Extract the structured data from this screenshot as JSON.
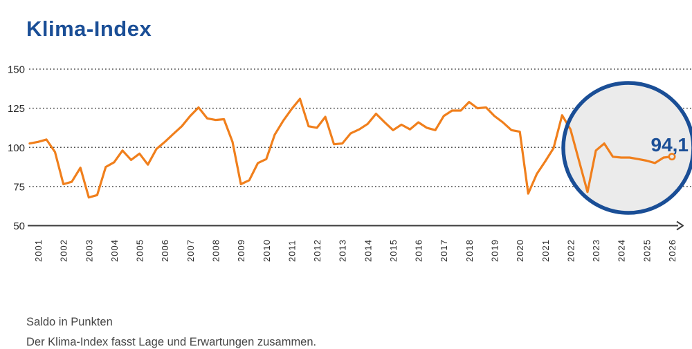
{
  "title": "Klima-Index",
  "colors": {
    "brand_blue": "#1A4E96",
    "line_orange": "#F07F1C",
    "grid_gray": "#4F4F4F",
    "axis_gray": "#3C3C3C",
    "circle_fill": "#EBEBEB",
    "text_gray": "#454545"
  },
  "footer": {
    "line1": "Saldo in Punkten",
    "line2": "Der Klima-Index fasst Lage und Erwartungen zusammen."
  },
  "chart_data": {
    "type": "line",
    "title": "Klima-Index",
    "ylabel": "Saldo in Punkten",
    "ylim": [
      50,
      150
    ],
    "yticks": [
      50,
      75,
      100,
      125,
      150
    ],
    "x_tick_years": [
      "2001",
      "2002",
      "2003",
      "2004",
      "2005",
      "2006",
      "2007",
      "2008",
      "2009",
      "2010",
      "2011",
      "2012",
      "2013",
      "2014",
      "2015",
      "2016",
      "2017",
      "2018",
      "2019",
      "2020",
      "2021",
      "2022",
      "2023",
      "2024",
      "2025",
      "2026"
    ],
    "grid": "horizontal dotted",
    "legend": "none",
    "highlight": {
      "shape": "circle-over-recent-years",
      "label": "94,1",
      "value": 94.1
    },
    "series": [
      {
        "name": "Klima-Index (Saldo in Punkten)",
        "points": [
          [
            2000.67,
            102.5
          ],
          [
            2001.0,
            103.5
          ],
          [
            2001.33,
            105
          ],
          [
            2001.67,
            97
          ],
          [
            2002.0,
            76.5
          ],
          [
            2002.33,
            78
          ],
          [
            2002.67,
            87
          ],
          [
            2003.0,
            68
          ],
          [
            2003.33,
            69.5
          ],
          [
            2003.67,
            87.5
          ],
          [
            2004.0,
            90.5
          ],
          [
            2004.33,
            98
          ],
          [
            2004.67,
            92
          ],
          [
            2005.0,
            96
          ],
          [
            2005.33,
            89
          ],
          [
            2005.67,
            99
          ],
          [
            2006.0,
            103.5
          ],
          [
            2006.33,
            108.5
          ],
          [
            2006.67,
            113.5
          ],
          [
            2007.0,
            120
          ],
          [
            2007.33,
            125.5
          ],
          [
            2007.67,
            118.5
          ],
          [
            2008.0,
            117.5
          ],
          [
            2008.33,
            118
          ],
          [
            2008.67,
            103.5
          ],
          [
            2009.0,
            76.5
          ],
          [
            2009.33,
            79
          ],
          [
            2009.67,
            90
          ],
          [
            2010.0,
            92.5
          ],
          [
            2010.33,
            108
          ],
          [
            2010.67,
            117
          ],
          [
            2011.0,
            124.5
          ],
          [
            2011.33,
            131
          ],
          [
            2011.67,
            113.5
          ],
          [
            2012.0,
            112.5
          ],
          [
            2012.33,
            119.5
          ],
          [
            2012.67,
            102
          ],
          [
            2013.0,
            102.5
          ],
          [
            2013.33,
            109
          ],
          [
            2013.67,
            111.5
          ],
          [
            2014.0,
            115
          ],
          [
            2014.33,
            121.5
          ],
          [
            2014.67,
            116
          ],
          [
            2015.0,
            111
          ],
          [
            2015.33,
            114.5
          ],
          [
            2015.67,
            111.5
          ],
          [
            2016.0,
            116
          ],
          [
            2016.33,
            112.5
          ],
          [
            2016.67,
            111
          ],
          [
            2017.0,
            120
          ],
          [
            2017.33,
            123.5
          ],
          [
            2017.67,
            123.5
          ],
          [
            2018.0,
            129
          ],
          [
            2018.33,
            125
          ],
          [
            2018.67,
            125.5
          ],
          [
            2019.0,
            120
          ],
          [
            2019.33,
            116
          ],
          [
            2019.67,
            111
          ],
          [
            2020.0,
            110
          ],
          [
            2020.33,
            70.5
          ],
          [
            2020.67,
            83
          ],
          [
            2021.0,
            91
          ],
          [
            2021.33,
            99.5
          ],
          [
            2021.67,
            120.5
          ],
          [
            2022.0,
            111.5
          ],
          [
            2022.67,
            71.5
          ],
          [
            2023.0,
            98
          ],
          [
            2023.33,
            102.5
          ],
          [
            2023.67,
            94
          ],
          [
            2024.0,
            93.5
          ],
          [
            2024.33,
            93.5
          ],
          [
            2024.67,
            92.5
          ],
          [
            2025.0,
            91.5
          ],
          [
            2025.33,
            90
          ],
          [
            2025.67,
            93.5
          ],
          [
            2026.0,
            94.1
          ]
        ]
      }
    ]
  }
}
